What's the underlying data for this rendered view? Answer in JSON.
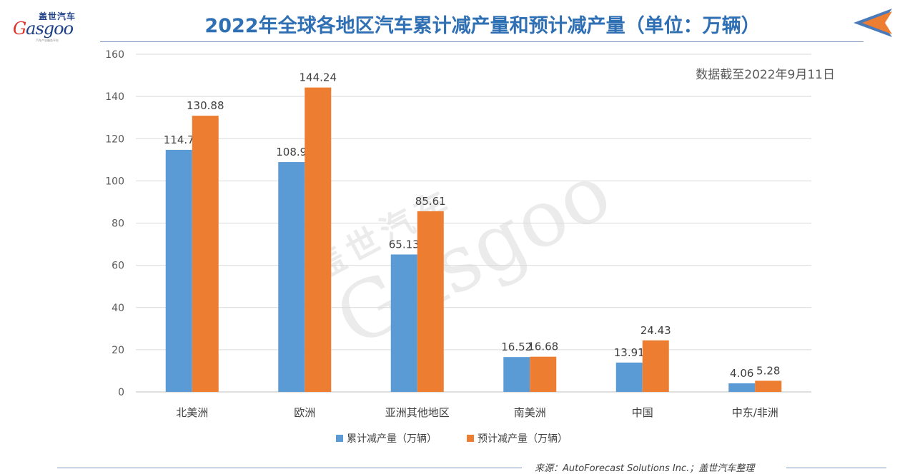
{
  "logo": {
    "brand_cn": "盖世汽车",
    "brand_en_g": "G",
    "brand_en_rest": "asgoo",
    "tagline": "汽车产业服务平台"
  },
  "title": "2022年全球各地区汽车累计减产量和预计减产量（单位：万辆）",
  "note": "数据截至2022年9月11日",
  "source": "来源：AutoForecast Solutions Inc.；盖世汽车整理",
  "watermark": {
    "cn": "盖世汽车",
    "en": "Gasgoo"
  },
  "colors": {
    "series1": "#5b9bd5",
    "series2": "#ed7d31",
    "title": "#2f6fb3",
    "grid": "#d9d9d9",
    "arrow_dark": "#4a7ab8",
    "arrow_light": "#ed7d31"
  },
  "chart_data": {
    "type": "bar",
    "categories": [
      "北美洲",
      "欧洲",
      "亚洲其他地区",
      "南美洲",
      "中国",
      "中东/非洲"
    ],
    "series": [
      {
        "name": "累计减产量（万辆）",
        "values": [
          114.7,
          108.9,
          65.13,
          16.52,
          13.91,
          4.06
        ],
        "labels": [
          "114.7",
          "108.9",
          "65.13",
          "16.52",
          "13.91",
          "4.06"
        ]
      },
      {
        "name": "预计减产量（万辆）",
        "values": [
          130.88,
          144.24,
          85.61,
          16.68,
          24.43,
          5.28
        ],
        "labels": [
          "130.88",
          "144.24",
          "85.61",
          "16.68",
          "24.43",
          "5.28"
        ]
      }
    ],
    "ylim": [
      0,
      160
    ],
    "yticks": [
      0,
      20,
      40,
      60,
      80,
      100,
      120,
      140,
      160
    ],
    "grid": true,
    "legend_position": "bottom"
  }
}
